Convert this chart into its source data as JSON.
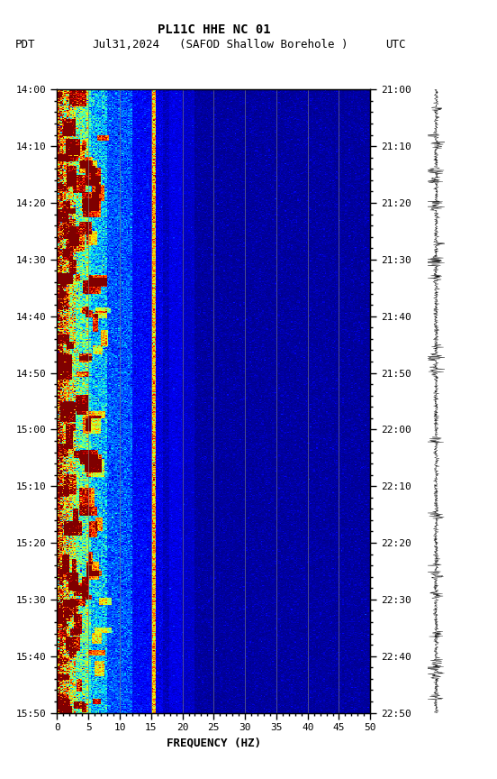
{
  "title_line1": "PL11C HHE NC 01",
  "title_line2_left": "PDT   Jul31,2024     (SAFOD Shallow Borehole )                UTC",
  "xlabel": "FREQUENCY (HZ)",
  "yticks_pdt": [
    "14:00",
    "14:10",
    "14:20",
    "14:30",
    "14:40",
    "14:50",
    "15:00",
    "15:10",
    "15:20",
    "15:30",
    "15:40",
    "15:50"
  ],
  "yticks_utc": [
    "21:00",
    "21:10",
    "21:20",
    "21:30",
    "21:40",
    "21:50",
    "22:00",
    "22:10",
    "22:20",
    "22:30",
    "22:40",
    "22:50"
  ],
  "xticks": [
    0,
    5,
    10,
    15,
    20,
    25,
    30,
    35,
    40,
    45,
    50
  ],
  "vertical_lines_freq": [
    5,
    10,
    15,
    20,
    25,
    30,
    35,
    40,
    45
  ],
  "noise_seed": 42,
  "background_color": "#ffffff",
  "colormap": "jet",
  "figsize": [
    5.52,
    8.64
  ],
  "dpi": 100,
  "n_freq": 250,
  "n_time": 700
}
